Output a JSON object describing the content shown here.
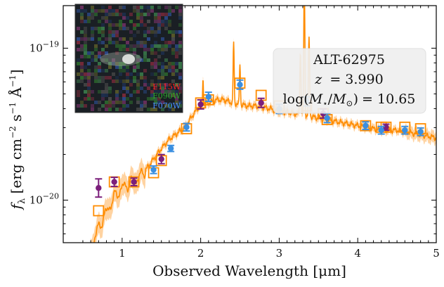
{
  "chart_data": {
    "type": "sed_spectrum",
    "xlabel": "Observed Wavelength [μm]",
    "ylabel_parts": {
      "f": "f",
      "sub": "λ",
      "a": " [erg cm",
      "e1": "−2",
      "b": " s",
      "e2": "−1",
      "c": " Å",
      "e3": "−1",
      "d": "]"
    },
    "xlim": [
      0.25,
      5.0
    ],
    "ylim_log10": [
      -20.28,
      -18.72
    ],
    "x_ticks": [
      {
        "value": 1,
        "label": "1"
      },
      {
        "value": 2,
        "label": "2"
      },
      {
        "value": 3,
        "label": "3"
      },
      {
        "value": 4,
        "label": "4"
      },
      {
        "value": 5,
        "label": "5"
      }
    ],
    "y_ticks": [
      {
        "value": -20,
        "label_base": "10",
        "label_exp": "−20"
      },
      {
        "value": -19,
        "label_base": "10",
        "label_exp": "−19"
      }
    ],
    "info_box": {
      "object": "ALT-62975",
      "z_label": "z",
      "z_value": "= 3.990",
      "mass_label_pre": "log(",
      "mass_label_m": "M",
      "mass_label_star": "⋆",
      "mass_label_div": "/",
      "mass_label_msun": "M",
      "mass_label_sun": "⊙",
      "mass_label_post": ")",
      "mass_value": "= 10.65"
    },
    "inset": {
      "filters": [
        {
          "name": "F115W",
          "color": "#ff2020"
        },
        {
          "name": "F090W",
          "color": "#2aa82a"
        },
        {
          "name": "F070W",
          "color": "#4a90ff"
        }
      ]
    },
    "colors": {
      "model": "#ff8c00",
      "model_band": "#ffc88a",
      "purple_points": "#7b1f7b",
      "blue_points": "#3b8fe0",
      "box_edge": "#ff8c00"
    },
    "model_continuum": [
      [
        0.6,
        -20.32
      ],
      [
        0.7,
        -20.18
      ],
      [
        0.8,
        -20.08
      ],
      [
        0.9,
        -19.98
      ],
      [
        1.0,
        -19.92
      ],
      [
        1.1,
        -19.89
      ],
      [
        1.2,
        -19.86
      ],
      [
        1.3,
        -19.8
      ],
      [
        1.4,
        -19.73
      ],
      [
        1.5,
        -19.66
      ],
      [
        1.6,
        -19.6
      ],
      [
        1.7,
        -19.56
      ],
      [
        1.8,
        -19.52
      ],
      [
        1.9,
        -19.44
      ],
      [
        2.0,
        -19.37
      ],
      [
        2.1,
        -19.36
      ],
      [
        2.2,
        -19.34
      ],
      [
        2.3,
        -19.34
      ],
      [
        2.4,
        -19.36
      ],
      [
        2.5,
        -19.37
      ],
      [
        2.6,
        -19.38
      ],
      [
        2.7,
        -19.38
      ],
      [
        2.8,
        -19.39
      ],
      [
        2.9,
        -19.4
      ],
      [
        3.0,
        -19.42
      ],
      [
        3.1,
        -19.42
      ],
      [
        3.2,
        -19.43
      ],
      [
        3.3,
        -19.44
      ],
      [
        3.4,
        -19.45
      ],
      [
        3.5,
        -19.46
      ],
      [
        3.6,
        -19.47
      ],
      [
        3.7,
        -19.48
      ],
      [
        3.8,
        -19.49
      ],
      [
        3.9,
        -19.5
      ],
      [
        4.0,
        -19.51
      ],
      [
        4.1,
        -19.52
      ],
      [
        4.2,
        -19.53
      ],
      [
        4.3,
        -19.54
      ],
      [
        4.4,
        -19.54
      ],
      [
        4.5,
        -19.54
      ],
      [
        4.6,
        -19.55
      ],
      [
        4.7,
        -19.56
      ],
      [
        4.8,
        -19.57
      ],
      [
        4.9,
        -19.58
      ],
      [
        5.0,
        -19.59
      ]
    ],
    "emission_lines": [
      {
        "x": 1.82,
        "peak": -19.54,
        "width": 0.012
      },
      {
        "x": 1.96,
        "peak": -19.4,
        "width": 0.01
      },
      {
        "x": 2.03,
        "peak": -19.2,
        "width": 0.01
      },
      {
        "x": 2.42,
        "peak": -18.96,
        "width": 0.012
      },
      {
        "x": 2.5,
        "peak": -19.1,
        "width": 0.012
      },
      {
        "x": 3.27,
        "peak": -19.03,
        "width": 0.014
      },
      {
        "x": 3.32,
        "peak": -18.6,
        "width": 0.012
      },
      {
        "x": 3.38,
        "peak": -18.94,
        "width": 0.014
      }
    ],
    "model_photometry": [
      [
        0.7,
        -20.07
      ],
      [
        0.9,
        -19.88
      ],
      [
        1.15,
        -19.88
      ],
      [
        1.4,
        -19.82
      ],
      [
        1.5,
        -19.74
      ],
      [
        1.82,
        -19.53
      ],
      [
        2.0,
        -19.36
      ],
      [
        2.1,
        -19.34
      ],
      [
        2.5,
        -19.23
      ],
      [
        2.77,
        -19.31
      ],
      [
        3.0,
        -19.38
      ],
      [
        3.35,
        -19.38
      ],
      [
        3.56,
        -19.43
      ],
      [
        3.61,
        -19.47
      ],
      [
        4.1,
        -19.51
      ],
      [
        4.3,
        -19.52
      ],
      [
        4.36,
        -19.52
      ],
      [
        4.6,
        -19.52
      ],
      [
        4.8,
        -19.53
      ]
    ],
    "purple_points": [
      {
        "x": 0.7,
        "y": -19.92,
        "err": 0.06
      },
      {
        "x": 0.9,
        "y": -19.88,
        "err": 0.03
      },
      {
        "x": 1.15,
        "y": -19.88,
        "err": 0.025
      },
      {
        "x": 1.5,
        "y": -19.73,
        "err": 0.03
      },
      {
        "x": 2.0,
        "y": -19.37,
        "err": 0.03
      },
      {
        "x": 2.77,
        "y": -19.36,
        "err": 0.03
      },
      {
        "x": 3.56,
        "y": -19.43,
        "err": 0.03
      },
      {
        "x": 4.36,
        "y": -19.52,
        "err": 0.02
      }
    ],
    "blue_points": [
      {
        "x": 1.4,
        "y": -19.8,
        "err": 0.025
      },
      {
        "x": 1.62,
        "y": -19.66,
        "err": 0.02
      },
      {
        "x": 1.82,
        "y": -19.52,
        "err": 0.025
      },
      {
        "x": 2.1,
        "y": -19.32,
        "err": 0.03
      },
      {
        "x": 2.5,
        "y": -19.24,
        "err": 0.03
      },
      {
        "x": 3.0,
        "y": -19.4,
        "err": 0.03
      },
      {
        "x": 3.35,
        "y": -19.35,
        "err": 0.03
      },
      {
        "x": 3.61,
        "y": -19.46,
        "err": 0.03
      },
      {
        "x": 4.1,
        "y": -19.51,
        "err": 0.025
      },
      {
        "x": 4.3,
        "y": -19.54,
        "err": 0.025
      },
      {
        "x": 4.6,
        "y": -19.54,
        "err": 0.025
      },
      {
        "x": 4.8,
        "y": -19.55,
        "err": 0.025
      }
    ]
  }
}
